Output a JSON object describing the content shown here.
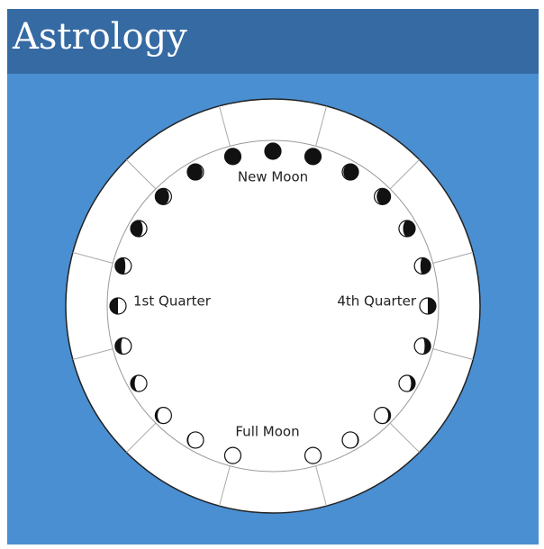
{
  "header": {
    "title": "Astrology"
  },
  "labels": {
    "new_moon": "New Moon",
    "first_quarter": "1st Quarter",
    "fourth_quarter": "4th Quarter",
    "full_moon": "Full Moon"
  }
}
